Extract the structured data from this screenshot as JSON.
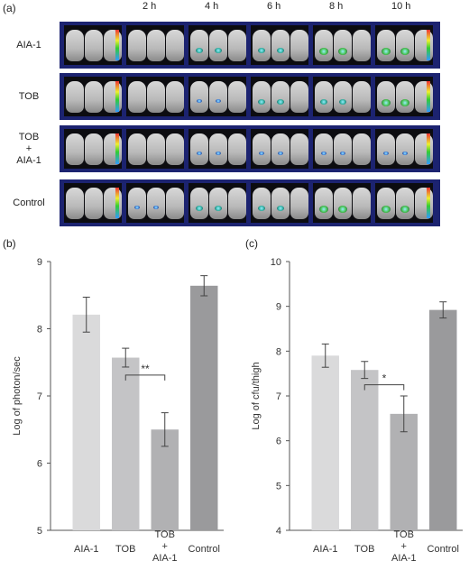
{
  "panel_a": {
    "letter": "(a)",
    "time_labels": [
      "2 h",
      "4 h",
      "6 h",
      "8 h",
      "10 h"
    ],
    "rows": [
      {
        "label": [
          "AIA-1"
        ],
        "spots": [
          0,
          0,
          2,
          2,
          3,
          3
        ]
      },
      {
        "label": [
          "TOB"
        ],
        "spots": [
          0,
          0,
          1,
          2,
          2,
          3
        ]
      },
      {
        "label": [
          "TOB",
          "+",
          "AIA-1"
        ],
        "spots": [
          0,
          0,
          1,
          1,
          1,
          1
        ]
      },
      {
        "label": [
          "Control"
        ],
        "spots": [
          0,
          1,
          2,
          2,
          3,
          3
        ]
      }
    ]
  },
  "chart_data": [
    {
      "type": "bar",
      "panel": "(b)",
      "categories": [
        [
          "AIA-1"
        ],
        [
          "TOB"
        ],
        [
          "TOB",
          "+",
          "AIA-1"
        ],
        [
          "Control"
        ]
      ],
      "values": [
        8.21,
        7.57,
        6.5,
        8.64
      ],
      "error": [
        0.26,
        0.14,
        0.25,
        0.15
      ],
      "ylabel": "Log of photon/sec",
      "ylim": [
        5,
        9
      ],
      "yticks": [
        5,
        6,
        7,
        8,
        9
      ],
      "colors": [
        "#dadadb",
        "#c4c4c6",
        "#b1b1b3",
        "#9a9a9c"
      ],
      "significance": {
        "from": 1,
        "to": 2,
        "label": "**",
        "y": 7.31
      }
    },
    {
      "type": "bar",
      "panel": "(c)",
      "categories": [
        [
          "AIA-1"
        ],
        [
          "TOB"
        ],
        [
          "TOB",
          "+",
          "AIA-1"
        ],
        [
          "Control"
        ]
      ],
      "values": [
        7.9,
        7.58,
        6.6,
        8.92
      ],
      "error": [
        0.26,
        0.19,
        0.4,
        0.18
      ],
      "ylabel": "Log of cfu/thigh",
      "ylim": [
        4,
        10
      ],
      "yticks": [
        4,
        5,
        6,
        7,
        8,
        9,
        10
      ],
      "colors": [
        "#dadadb",
        "#c4c4c6",
        "#b1b1b3",
        "#9a9a9c"
      ],
      "significance": {
        "from": 1,
        "to": 2,
        "label": "*",
        "y": 7.25
      }
    }
  ]
}
